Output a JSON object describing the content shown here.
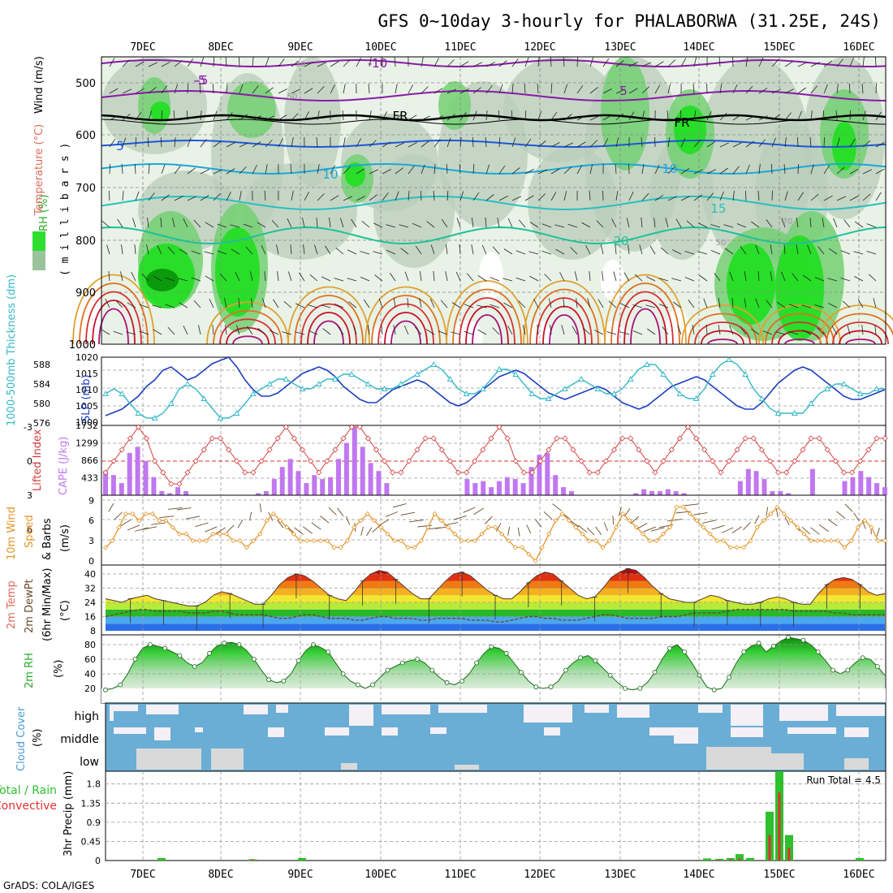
{
  "title": "GFS 0~10day 3-hourly for PHALABORWA (31.25E, 24S)",
  "credit": "GrADS: COLA/IGES",
  "dates": [
    "7DEC",
    "8DEC",
    "9DEC",
    "10DEC",
    "11DEC",
    "12DEC",
    "13DEC",
    "14DEC",
    "15DEC",
    "16DEC"
  ],
  "colors": {
    "slp": "#1c3fbf",
    "thickness": "#36b8c8",
    "lifted_index": "#d23c3c",
    "cape": "#c077f0",
    "wind10m": "#e6962a",
    "barbs": "#6b4a2a",
    "rh_green": "#2fbf2f",
    "cloud_blue": "#6aaed6",
    "cloud_clear": "#f4f0f6",
    "cloud_low": "#d9d9d9",
    "precip_total": "#2fbf2f",
    "precip_conv": "#e03030"
  },
  "panels": {
    "upper": {
      "ylabel_wind": "Wind (m/s)",
      "ylabel_temp": "Temperature (°C)",
      "ylabel_rh": "RH (%)",
      "ylabel_mb": "( m i l l i b a r s )",
      "yticks": [
        "500",
        "600",
        "700",
        "800",
        "900",
        "1000"
      ],
      "contour_labels": [
        "-10",
        "-5",
        "5",
        "FR",
        "FR",
        "-5",
        "5",
        "10",
        "10",
        "15",
        "20",
        "30",
        "50",
        "50",
        "70"
      ]
    },
    "slp": {
      "ylabel_left": "1000-500mb Thickness (dm)",
      "ylabel_right": "SLP (mb)",
      "left_ticks": [
        "588",
        "584",
        "580",
        "576"
      ],
      "right_ticks": [
        "1020",
        "1015",
        "1010",
        "1005",
        "1000"
      ]
    },
    "cape": {
      "ylabel_left": "Lifted Index",
      "ylabel_right": "CAPE (J/kg)",
      "left_ticks": [
        "-3",
        "0",
        "3",
        "6"
      ],
      "right_ticks": [
        "1732",
        "1299",
        "866",
        "433"
      ]
    },
    "wind": {
      "ylabel1": "10m Wind",
      "ylabel2": "Speed",
      "ylabel3": "& Barbs",
      "units": "(m/s)",
      "ticks": [
        "9",
        "6",
        "3",
        "0"
      ]
    },
    "temp": {
      "ylabel1": "2m Temp",
      "ylabel2": "2m DewPt",
      "ylabel3": "(6hr Min/Max)",
      "units": "(°C)",
      "ticks": [
        "40",
        "32",
        "24",
        "16",
        "8"
      ]
    },
    "rh": {
      "ylabel": "2m RH",
      "units": "(%)",
      "ticks": [
        "80",
        "60",
        "40",
        "20"
      ]
    },
    "cloud": {
      "ylabel": "Cloud Cover",
      "units": "(%)",
      "levels": [
        "high",
        "middle",
        "low"
      ]
    },
    "precip": {
      "ylabel1": "Total / Rain",
      "ylabel2": "Convective",
      "ylabel3": "3hr Precip (mm)",
      "ticks": [
        "1.8",
        "1.35",
        "0.9",
        "0.45",
        "0"
      ],
      "run_total": "Run Total = 4.5"
    }
  },
  "chart_data": {
    "type": "line",
    "x_start": "6DEC 12Z",
    "step_hours": 3,
    "slp_mb": [
      1002,
      1003,
      1004,
      1006,
      1008,
      1011,
      1013,
      1016,
      1017,
      1015,
      1013,
      1014,
      1016,
      1018,
      1019,
      1020,
      1017,
      1013,
      1010,
      1008,
      1008,
      1009,
      1011,
      1013,
      1015,
      1016,
      1017,
      1016,
      1014,
      1011,
      1009,
      1007,
      1006,
      1006,
      1008,
      1010,
      1011,
      1012,
      1013,
      1012,
      1010,
      1008,
      1006,
      1005,
      1006,
      1008,
      1010,
      1012,
      1014,
      1015,
      1016,
      1015,
      1013,
      1011,
      1009,
      1008,
      1007,
      1008,
      1009,
      1010,
      1011,
      1010,
      1008,
      1006,
      1005,
      1004,
      1005,
      1007,
      1009,
      1011,
      1012,
      1013,
      1014,
      1013,
      1011,
      1009,
      1007,
      1005,
      1004,
      1004,
      1006,
      1009,
      1012,
      1014,
      1016,
      1017,
      1016,
      1014,
      1012,
      1010,
      1008,
      1007,
      1007,
      1008,
      1009,
      1010
    ],
    "thickness_dm": [
      582,
      583,
      582,
      580,
      578,
      577,
      577,
      578,
      580,
      583,
      584,
      583,
      581,
      579,
      577,
      577,
      578,
      580,
      582,
      583,
      584,
      585,
      585,
      584,
      583,
      583,
      584,
      585,
      585,
      586,
      586,
      585,
      584,
      583,
      583,
      583,
      584,
      585,
      586,
      587,
      588,
      587,
      585,
      583,
      582,
      582,
      583,
      585,
      587,
      587,
      586,
      584,
      582,
      581,
      581,
      582,
      583,
      584,
      585,
      584,
      583,
      582,
      582,
      583,
      585,
      587,
      588,
      588,
      586,
      584,
      582,
      581,
      581,
      583,
      586,
      588,
      589,
      588,
      586,
      583,
      581,
      579,
      578,
      578,
      578,
      578,
      580,
      582,
      583,
      584,
      584,
      583,
      582,
      582,
      583,
      583
    ],
    "lifted_index": [
      1,
      0,
      -1,
      -2,
      -3,
      -2,
      0,
      1,
      2,
      2,
      1,
      0,
      -1,
      -2,
      -2,
      -1,
      0,
      1,
      1,
      0,
      -1,
      -2,
      -3,
      -2,
      -1,
      0,
      1,
      0,
      -1,
      -2,
      -3,
      -3,
      -2,
      -1,
      0,
      1,
      1,
      0,
      -1,
      -2,
      -2,
      -1,
      0,
      1,
      1,
      0,
      -1,
      -2,
      -3,
      -2,
      0,
      1,
      1,
      0,
      -1,
      -2,
      -2,
      -1,
      0,
      1,
      1,
      0,
      -1,
      -2,
      -2,
      -1,
      0,
      1,
      0,
      -1,
      -2,
      -3,
      -2,
      -1,
      0,
      1,
      0,
      -1,
      -2,
      -2,
      -1,
      0,
      1,
      1,
      0,
      -1,
      -2,
      -2,
      -1,
      0,
      1,
      1,
      0,
      -1,
      -2,
      -2
    ],
    "cape": [
      600,
      500,
      300,
      1050,
      1200,
      850,
      450,
      100,
      50,
      200,
      100,
      0,
      0,
      0,
      0,
      0,
      0,
      0,
      0,
      50,
      100,
      400,
      700,
      900,
      600,
      300,
      500,
      400,
      450,
      900,
      1300,
      1700,
      1200,
      800,
      600,
      300,
      0,
      0,
      0,
      0,
      0,
      0,
      0,
      0,
      0,
      400,
      300,
      350,
      200,
      350,
      450,
      400,
      300,
      700,
      1000,
      1050,
      500,
      200,
      100,
      0,
      0,
      0,
      0,
      0,
      0,
      0,
      50,
      150,
      100,
      100,
      150,
      100,
      50,
      0,
      0,
      0,
      0,
      0,
      0,
      350,
      650,
      600,
      400,
      100,
      100,
      50,
      0,
      0,
      650,
      0,
      0,
      0,
      350,
      450,
      600,
      450,
      300,
      200
    ],
    "wind10m_ms": [
      2,
      3,
      5,
      7,
      7,
      6,
      7,
      7,
      6,
      6,
      5,
      4,
      4,
      3,
      3,
      3,
      4,
      4,
      4,
      3,
      3,
      2,
      3,
      4,
      6,
      7,
      6,
      5,
      4,
      3,
      3,
      3,
      3,
      3,
      2,
      2,
      3,
      5,
      6,
      7,
      6,
      5,
      4,
      3,
      3,
      2,
      2,
      3,
      5,
      7,
      6,
      5,
      4,
      3,
      3,
      3,
      4,
      5,
      5,
      4,
      3,
      2,
      2,
      1,
      0,
      2,
      4,
      6,
      7,
      6,
      5,
      4,
      3,
      3,
      2,
      3,
      5,
      7,
      6,
      5,
      4,
      3,
      3,
      4,
      5,
      8,
      8,
      7,
      6,
      5,
      4,
      3,
      3,
      2,
      2,
      2,
      3,
      5,
      6,
      7,
      8,
      7,
      6,
      5,
      4,
      3,
      3,
      3,
      3,
      3,
      2,
      3,
      5,
      6,
      5,
      3,
      3
    ],
    "temp2m_c": [
      26,
      25,
      24,
      26,
      27,
      28,
      26,
      25,
      24,
      23,
      22,
      22,
      24,
      28,
      30,
      29,
      27,
      25,
      23,
      23,
      28,
      34,
      38,
      40,
      39,
      36,
      32,
      28,
      26,
      25,
      30,
      36,
      40,
      42,
      41,
      37,
      33,
      29,
      26,
      26,
      31,
      36,
      40,
      41,
      39,
      35,
      31,
      28,
      26,
      26,
      30,
      35,
      39,
      41,
      40,
      36,
      32,
      28,
      26,
      27,
      32,
      38,
      41,
      43,
      42,
      38,
      33,
      29,
      26,
      25,
      24,
      24,
      26,
      28,
      27,
      25,
      24,
      23,
      23,
      24,
      26,
      27,
      26,
      24,
      23,
      23,
      29,
      34,
      37,
      38,
      37,
      34,
      30,
      28,
      29
    ],
    "dewpt2m_c": [
      16,
      17,
      18,
      19,
      20,
      20,
      19,
      19,
      19,
      19,
      18,
      18,
      18,
      19,
      19,
      18,
      17,
      17,
      17,
      17,
      16,
      15,
      15,
      16,
      17,
      17,
      16,
      15,
      15,
      15,
      14,
      14,
      15,
      16,
      16,
      15,
      15,
      15,
      14,
      14,
      15,
      15,
      15,
      15,
      14,
      14,
      14,
      13,
      13,
      14,
      15,
      16,
      16,
      15,
      15,
      14,
      14,
      14,
      15,
      16,
      17,
      17,
      16,
      15,
      15,
      15,
      15,
      16,
      16,
      16,
      17,
      18,
      18,
      18,
      18,
      19,
      20,
      20,
      20,
      20,
      20,
      20,
      20,
      19,
      19,
      19,
      19,
      19,
      18,
      18,
      17,
      17,
      17,
      17,
      17
    ],
    "rh2m_pct": [
      18,
      20,
      25,
      40,
      60,
      75,
      80,
      78,
      75,
      70,
      65,
      55,
      50,
      55,
      68,
      78,
      82,
      83,
      80,
      72,
      60,
      45,
      32,
      28,
      30,
      40,
      58,
      72,
      80,
      76,
      70,
      55,
      40,
      30,
      25,
      20,
      25,
      35,
      45,
      50,
      55,
      58,
      60,
      55,
      45,
      35,
      28,
      25,
      30,
      40,
      55,
      68,
      77,
      75,
      68,
      55,
      42,
      30,
      22,
      20,
      22,
      30,
      45,
      55,
      62,
      65,
      58,
      48,
      38,
      28,
      20,
      18,
      20,
      28,
      42,
      60,
      75,
      80,
      70,
      55,
      38,
      22,
      18,
      20,
      35,
      55,
      70,
      78,
      82,
      70,
      78,
      85,
      90,
      88,
      86,
      80,
      70,
      58,
      45,
      40,
      45,
      55,
      62,
      60,
      50,
      38
    ]
  }
}
